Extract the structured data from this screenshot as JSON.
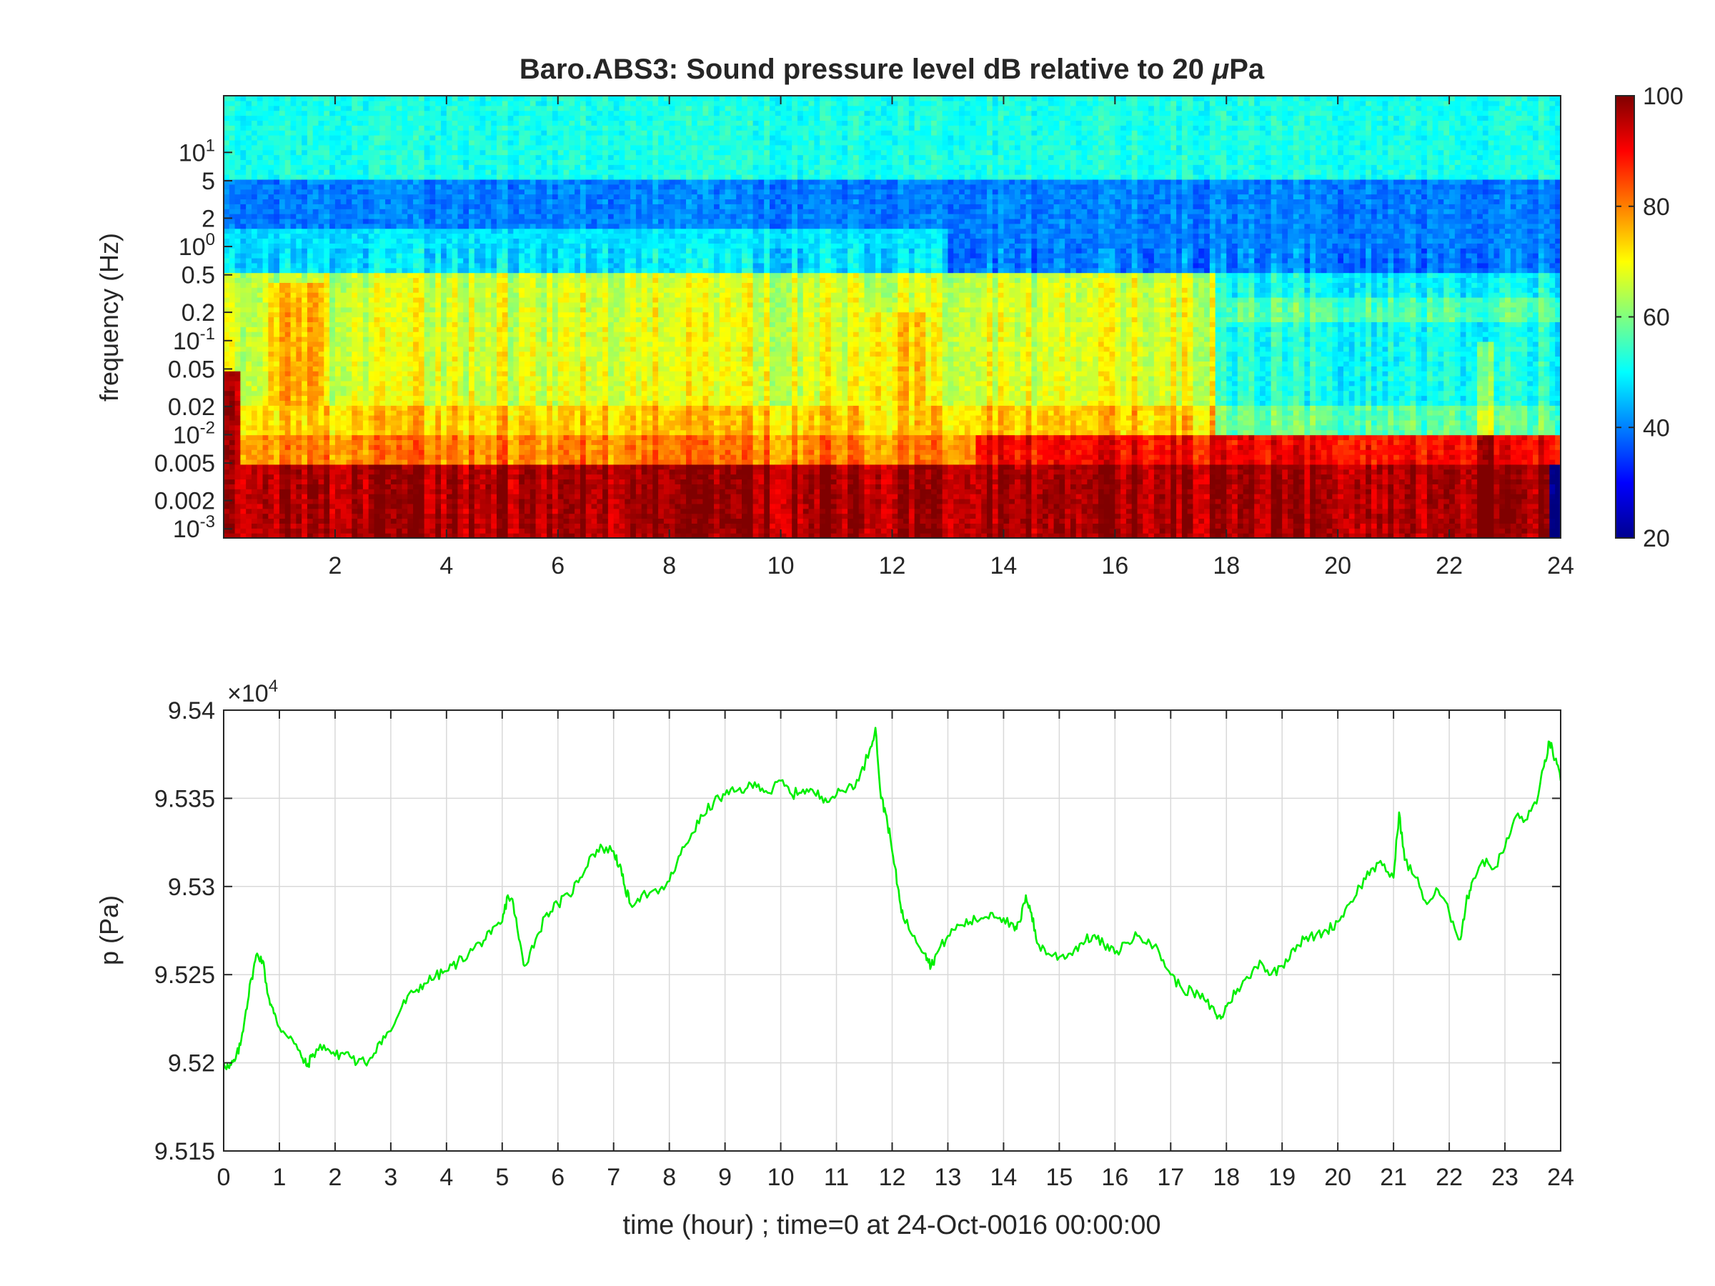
{
  "chart_data": [
    {
      "type": "heatmap",
      "title_main": "Baro.ABS3: Sound pressure level dB relative to 20 ",
      "title_unit_mu": "μ",
      "title_unit_rest": "Pa",
      "xlabel": "",
      "ylabel": "frequency (Hz)",
      "xlim": [
        0,
        24
      ],
      "x_ticks": [
        2,
        4,
        6,
        8,
        10,
        12,
        14,
        16,
        18,
        20,
        22,
        24
      ],
      "y_scale": "log",
      "ylim": [
        0.0008,
        40
      ],
      "y_ticks": [
        {
          "value": 10,
          "base": "10",
          "exp": "1"
        },
        {
          "value": 5,
          "label": "5"
        },
        {
          "value": 2,
          "label": "2"
        },
        {
          "value": 1,
          "base": "10",
          "exp": "0"
        },
        {
          "value": 0.5,
          "label": "0.5"
        },
        {
          "value": 0.2,
          "label": "0.2"
        },
        {
          "value": 0.1,
          "base": "10",
          "exp": "-1"
        },
        {
          "value": 0.05,
          "label": "0.05"
        },
        {
          "value": 0.02,
          "label": "0.02"
        },
        {
          "value": 0.01,
          "base": "10",
          "exp": "-2"
        },
        {
          "value": 0.005,
          "label": "0.005"
        },
        {
          "value": 0.002,
          "label": "0.002"
        },
        {
          "value": 0.001,
          "base": "10",
          "exp": "-3"
        }
      ],
      "colormap": "jet",
      "clim": [
        20,
        100
      ],
      "colorbar_ticks": [
        20,
        40,
        60,
        80,
        100
      ],
      "approx_levels_dB": {
        "above_5_Hz": 52,
        "0.5_to_5_Hz_quiet": 40,
        "0.02_to_0.5_Hz_hours_0_to_18": 66,
        "0.02_to_0.5_Hz_hours_18_to_24": 50,
        "0.005_to_0.01_Hz": 88,
        "below_0.005_Hz": 97
      }
    },
    {
      "type": "line",
      "title": "",
      "xlabel": "time (hour) ; time=0 at 24-Oct-0016 00:00:00",
      "ylabel": "p (Pa)",
      "y_multiplier": "×10",
      "y_multiplier_exp": "4",
      "xlim": [
        0,
        24
      ],
      "ylim": [
        9.515,
        9.54
      ],
      "x_ticks": [
        0,
        1,
        2,
        3,
        4,
        5,
        6,
        7,
        8,
        9,
        10,
        11,
        12,
        13,
        14,
        15,
        16,
        17,
        18,
        19,
        20,
        21,
        22,
        23,
        24
      ],
      "y_ticks": [
        9.515,
        9.52,
        9.525,
        9.53,
        9.535,
        9.54
      ],
      "grid": true,
      "series": [
        {
          "color": "#00ee00",
          "x": [
            0,
            0.1,
            0.2,
            0.3,
            0.4,
            0.5,
            0.6,
            0.7,
            0.8,
            0.9,
            1.0,
            1.2,
            1.4,
            1.5,
            1.6,
            1.8,
            2.0,
            2.2,
            2.4,
            2.6,
            2.8,
            3.0,
            3.2,
            3.4,
            3.6,
            3.8,
            4.0,
            4.2,
            4.4,
            4.6,
            4.8,
            5.0,
            5.1,
            5.2,
            5.3,
            5.4,
            5.6,
            5.8,
            6.0,
            6.2,
            6.4,
            6.6,
            6.8,
            7.0,
            7.1,
            7.2,
            7.3,
            7.5,
            7.8,
            8.0,
            8.2,
            8.4,
            8.6,
            8.8,
            9.0,
            9.2,
            9.4,
            9.6,
            9.8,
            10.0,
            10.2,
            10.4,
            10.6,
            10.8,
            11.0,
            11.2,
            11.4,
            11.6,
            11.7,
            11.8,
            11.9,
            12.0,
            12.1,
            12.2,
            12.4,
            12.6,
            12.7,
            12.8,
            13.0,
            13.2,
            13.4,
            13.6,
            13.8,
            14.0,
            14.2,
            14.3,
            14.4,
            14.5,
            14.6,
            14.8,
            15.0,
            15.2,
            15.4,
            15.6,
            15.8,
            16.0,
            16.2,
            16.4,
            16.6,
            16.8,
            17.0,
            17.2,
            17.4,
            17.6,
            17.8,
            17.9,
            18.0,
            18.2,
            18.4,
            18.6,
            18.8,
            19.0,
            19.2,
            19.4,
            19.6,
            19.8,
            20.0,
            20.2,
            20.4,
            20.6,
            20.8,
            21.0,
            21.1,
            21.2,
            21.4,
            21.6,
            21.8,
            22.0,
            22.2,
            22.3,
            22.4,
            22.6,
            22.8,
            23.0,
            23.2,
            23.4,
            23.6,
            23.7,
            23.8,
            23.9,
            24.0
          ],
          "y": [
            9.52,
            9.5197,
            9.5201,
            9.521,
            9.523,
            9.5248,
            9.5262,
            9.5258,
            9.5238,
            9.5228,
            9.522,
            9.5215,
            9.5203,
            9.5198,
            9.5205,
            9.521,
            9.5204,
            9.5206,
            9.52,
            9.5201,
            9.5212,
            9.5218,
            9.5232,
            9.524,
            9.5245,
            9.5249,
            9.5252,
            9.5257,
            9.5262,
            9.5268,
            9.5273,
            9.528,
            9.5295,
            9.529,
            9.527,
            9.5255,
            9.527,
            9.5285,
            9.529,
            9.5295,
            9.5305,
            9.5318,
            9.5322,
            9.532,
            9.5312,
            9.53,
            9.529,
            9.5295,
            9.5296,
            9.5303,
            9.5318,
            9.533,
            9.534,
            9.5348,
            9.5352,
            9.5354,
            9.5356,
            9.5358,
            9.5353,
            9.536,
            9.5352,
            9.5355,
            9.5353,
            9.535,
            9.5352,
            9.5356,
            9.536,
            9.5378,
            9.539,
            9.535,
            9.534,
            9.532,
            9.53,
            9.5282,
            9.5272,
            9.5262,
            9.5255,
            9.5262,
            9.5272,
            9.5278,
            9.528,
            9.5282,
            9.5285,
            9.5282,
            9.5275,
            9.528,
            9.5295,
            9.5285,
            9.5268,
            9.5262,
            9.526,
            9.5262,
            9.5268,
            9.5272,
            9.5267,
            9.5262,
            9.5268,
            9.5272,
            9.527,
            9.5262,
            9.525,
            9.5242,
            9.524,
            9.5236,
            9.5228,
            9.5225,
            9.5232,
            9.5242,
            9.5248,
            9.5258,
            9.525,
            9.5255,
            9.5265,
            9.527,
            9.5272,
            9.5275,
            9.528,
            9.529,
            9.53,
            9.531,
            9.5312,
            9.5305,
            9.5342,
            9.5315,
            9.5305,
            9.529,
            9.5298,
            9.5285,
            9.527,
            9.529,
            9.5302,
            9.5315,
            9.531,
            9.5322,
            9.534,
            9.5338,
            9.5352,
            9.5368,
            9.5382,
            9.5372,
            9.536
          ]
        }
      ]
    }
  ]
}
